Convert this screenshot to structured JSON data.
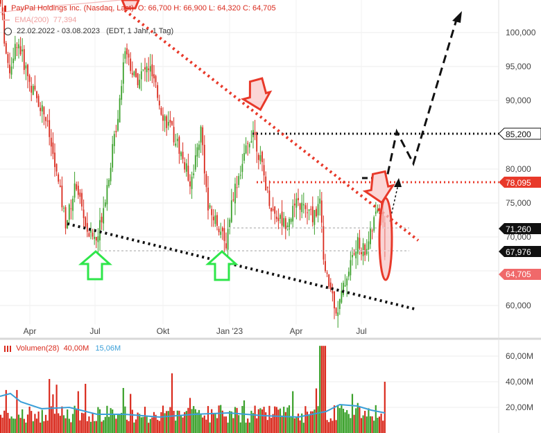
{
  "header": {
    "title": "PayPal Holdings Inc. (Nasdaq, Last)",
    "ohlc": "O: 66,700   H: 66,900   L: 64,320   C: 64,705",
    "ema_label": "EMA(200)",
    "ema_value": "77,394",
    "range": "22.02.2022 - 03.08.2023",
    "range_note": "(EDT, 1 Jahr, 1 Tag)"
  },
  "volume_legend": {
    "label": "Volumen(28)",
    "value1": "40,00M",
    "value2": "15,06M"
  },
  "colors": {
    "up": "#3aa02a",
    "down": "#d9291c",
    "trend_red": "#e8392a",
    "ema": "#f4b8b8",
    "vol_avg": "#3a9fd8",
    "support": "#111111",
    "arrow_green": "#2ee64a"
  },
  "chart_data": {
    "type": "candlestick",
    "x_tick_labels": [
      "Apr",
      "Jul",
      "Okt",
      "Jan '23",
      "Apr",
      "Jul"
    ],
    "y_tick_labels": [
      "100,000",
      "95,000",
      "90,000",
      "80,000",
      "75,000",
      "70,000",
      "60,000"
    ],
    "ylim": [
      52,
      106
    ],
    "price_tags": [
      {
        "label": "85,200",
        "value": 85.2,
        "style": "outline"
      },
      {
        "label": "78,095",
        "value": 78.095,
        "style": "red"
      },
      {
        "label": "71,260",
        "value": 71.26,
        "style": "black"
      },
      {
        "label": "67,976",
        "value": 67.976,
        "style": "black"
      },
      {
        "label": "64,705",
        "value": 64.705,
        "style": "lightred"
      }
    ],
    "price_path": [
      [
        0,
        105
      ],
      [
        12,
        94
      ],
      [
        25,
        99
      ],
      [
        45,
        92
      ],
      [
        65,
        88
      ],
      [
        80,
        80
      ],
      [
        95,
        72
      ],
      [
        110,
        78
      ],
      [
        125,
        71
      ],
      [
        140,
        69.5
      ],
      [
        155,
        78
      ],
      [
        170,
        88
      ],
      [
        180,
        98
      ],
      [
        195,
        93
      ],
      [
        215,
        95
      ],
      [
        235,
        88
      ],
      [
        255,
        84
      ],
      [
        275,
        78
      ],
      [
        290,
        86
      ],
      [
        300,
        74
      ],
      [
        315,
        72
      ],
      [
        325,
        68.5
      ],
      [
        335,
        76
      ],
      [
        350,
        81
      ],
      [
        365,
        86
      ],
      [
        378,
        80
      ],
      [
        392,
        74
      ],
      [
        410,
        72
      ],
      [
        430,
        75
      ],
      [
        450,
        73
      ],
      [
        463,
        75
      ],
      [
        467,
        65
      ],
      [
        478,
        62
      ],
      [
        486,
        59
      ],
      [
        496,
        63
      ],
      [
        506,
        66.5
      ],
      [
        516,
        69
      ],
      [
        526,
        68
      ],
      [
        536,
        71
      ],
      [
        546,
        75
      ],
      [
        552,
        73
      ],
      [
        556,
        65
      ]
    ],
    "volume": {
      "ylim": [
        0,
        72
      ],
      "y_tick_labels": [
        "60,00M",
        "40,00M",
        "20,00M"
      ],
      "y_tick_values": [
        60,
        40,
        20
      ]
    }
  }
}
